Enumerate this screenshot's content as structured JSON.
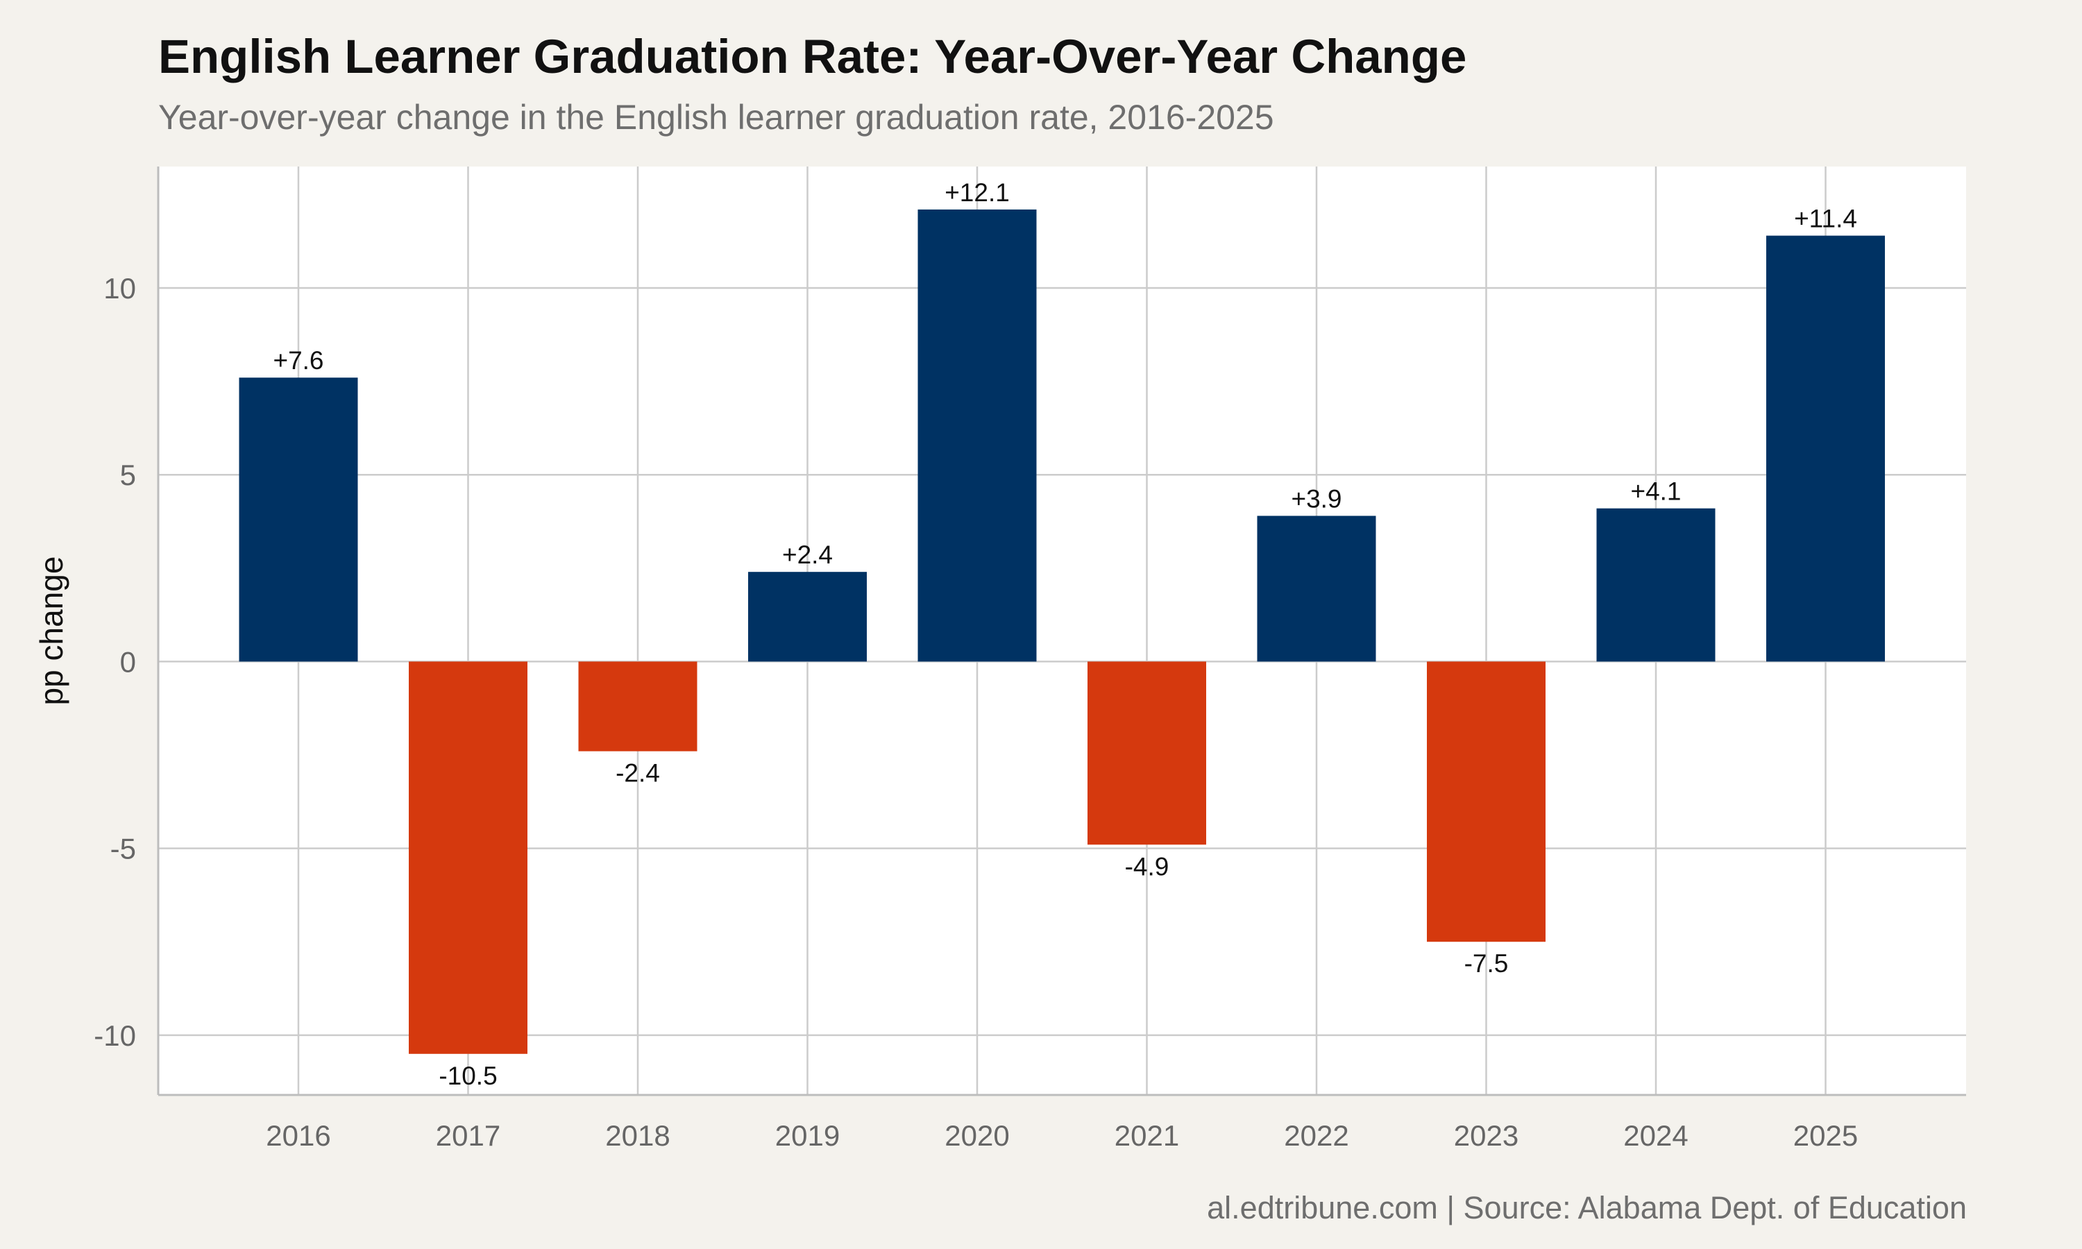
{
  "title": "English Learner Graduation Rate: Year-Over-Year Change",
  "subtitle": "Year-over-year change in the English learner graduation rate, 2016-2025",
  "caption": "al.edtribune.com | Source: Alabama Dept. of Education",
  "chart_data": {
    "type": "bar",
    "title": "English Learner Graduation Rate: Year-Over-Year Change",
    "subtitle": "Year-over-year change in the English learner graduation rate, 2016-2025",
    "xlabel": "",
    "ylabel": "pp change",
    "categories": [
      "2016",
      "2017",
      "2018",
      "2019",
      "2020",
      "2021",
      "2022",
      "2023",
      "2024",
      "2025"
    ],
    "values": [
      7.6,
      -10.5,
      -2.4,
      2.4,
      12.1,
      -4.9,
      3.9,
      -7.5,
      4.1,
      11.4
    ],
    "data_labels": [
      "+7.6",
      "-10.5",
      "-2.4",
      "+2.4",
      "+12.1",
      "-4.9",
      "+3.9",
      "-7.5",
      "+4.1",
      "+11.4"
    ],
    "yticks": [
      -10,
      -5,
      0,
      5,
      10
    ],
    "ytick_labels": [
      "-10",
      "-5",
      "0",
      "5",
      "10"
    ],
    "ylim": [
      -11.6,
      13.25
    ],
    "grid": true,
    "legend": "none",
    "colors": {
      "positive": "#003263",
      "negative": "#d5390e",
      "grid": "#cccccc",
      "panel": "#ffffff",
      "background": "#f4f2ed"
    }
  }
}
